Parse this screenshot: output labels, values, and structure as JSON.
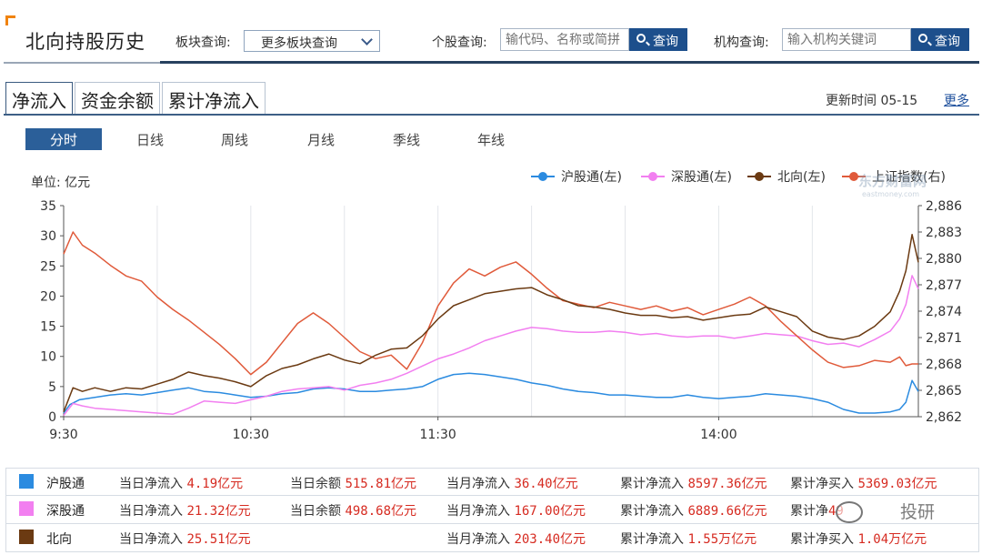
{
  "header": {
    "title": "北向持股历史",
    "sector_label": "板块查询:",
    "sector_select_value": "更多板块查询",
    "stock_label": "个股查询:",
    "stock_placeholder": "输代码、名称或简拼",
    "institution_label": "机构查询:",
    "institution_placeholder": "输入机构关键词",
    "search_button": "查询"
  },
  "main_tabs": [
    "净流入",
    "资金余额",
    "累计净流入"
  ],
  "update_label": "更新时间 05-15",
  "more_link": "更多",
  "period_tabs": [
    "分时",
    "日线",
    "周线",
    "月线",
    "季线",
    "年线"
  ],
  "watermark": {
    "top": "东方财富网",
    "top_sub": "eastmoney.com",
    "bottom": "投研"
  },
  "colors": {
    "hu": "#2b8be0",
    "shen": "#f27ff0",
    "bei": "#6b3a12",
    "sh_index": "#e05a3a",
    "accent": "#1d4f8c"
  },
  "chart_data": {
    "type": "line",
    "unit_label": "单位: 亿元",
    "legend": [
      "沪股通(左)",
      "深股通(左)",
      "北向(左)",
      "上证指数(右)"
    ],
    "legend_position": "top-right",
    "x_ticks": [
      "9:30",
      "10:30",
      "11:30",
      "14:00"
    ],
    "x_tick_index": [
      0,
      60,
      120,
      210
    ],
    "x_total_minutes": 240,
    "y_left_ticks": [
      0,
      5,
      10,
      15,
      20,
      25,
      30,
      35
    ],
    "y_left_range": [
      0,
      35
    ],
    "y_right_ticks": [
      "2,862",
      "2,865",
      "2,868",
      "2,871",
      "2,874",
      "2,877",
      "2,880",
      "2,883",
      "2,886"
    ],
    "y_right_range": [
      2862,
      2886
    ],
    "grid": "vertical",
    "series": [
      {
        "name": "沪股通(左)",
        "key": "hu",
        "points": [
          [
            0,
            0.6
          ],
          [
            2,
            2.0
          ],
          [
            5,
            2.8
          ],
          [
            10,
            3.2
          ],
          [
            15,
            3.6
          ],
          [
            20,
            3.8
          ],
          [
            25,
            3.6
          ],
          [
            30,
            4.0
          ],
          [
            35,
            4.4
          ],
          [
            40,
            4.8
          ],
          [
            45,
            4.2
          ],
          [
            50,
            4.0
          ],
          [
            55,
            3.6
          ],
          [
            60,
            3.2
          ],
          [
            65,
            3.4
          ],
          [
            70,
            3.8
          ],
          [
            75,
            4.0
          ],
          [
            80,
            4.6
          ],
          [
            85,
            4.8
          ],
          [
            90,
            4.6
          ],
          [
            95,
            4.2
          ],
          [
            100,
            4.2
          ],
          [
            105,
            4.4
          ],
          [
            110,
            4.6
          ],
          [
            115,
            5.0
          ],
          [
            120,
            6.2
          ],
          [
            125,
            7.0
          ],
          [
            130,
            7.2
          ],
          [
            135,
            7.0
          ],
          [
            140,
            6.6
          ],
          [
            145,
            6.2
          ],
          [
            150,
            5.6
          ],
          [
            155,
            5.2
          ],
          [
            160,
            4.6
          ],
          [
            165,
            4.2
          ],
          [
            170,
            4.0
          ],
          [
            175,
            3.6
          ],
          [
            180,
            3.6
          ],
          [
            185,
            3.4
          ],
          [
            190,
            3.2
          ],
          [
            195,
            3.2
          ],
          [
            200,
            3.6
          ],
          [
            205,
            3.2
          ],
          [
            210,
            3.0
          ],
          [
            215,
            3.2
          ],
          [
            220,
            3.4
          ],
          [
            225,
            3.8
          ],
          [
            230,
            3.6
          ],
          [
            235,
            3.4
          ],
          [
            240,
            3.0
          ],
          [
            245,
            2.4
          ],
          [
            250,
            1.2
          ],
          [
            255,
            0.6
          ],
          [
            260,
            0.6
          ],
          [
            265,
            0.8
          ],
          [
            268,
            1.2
          ],
          [
            270,
            2.4
          ],
          [
            272,
            6.0
          ],
          [
            274,
            4.2
          ]
        ]
      },
      {
        "name": "深股通(左)",
        "key": "shen",
        "points": [
          [
            0,
            0.2
          ],
          [
            3,
            2.2
          ],
          [
            6,
            1.8
          ],
          [
            10,
            1.4
          ],
          [
            15,
            1.2
          ],
          [
            20,
            1.0
          ],
          [
            25,
            0.8
          ],
          [
            30,
            0.6
          ],
          [
            35,
            0.4
          ],
          [
            40,
            1.4
          ],
          [
            45,
            2.6
          ],
          [
            50,
            2.4
          ],
          [
            55,
            2.2
          ],
          [
            60,
            2.8
          ],
          [
            65,
            3.4
          ],
          [
            70,
            4.2
          ],
          [
            75,
            4.6
          ],
          [
            80,
            4.8
          ],
          [
            85,
            5.0
          ],
          [
            90,
            4.4
          ],
          [
            95,
            5.2
          ],
          [
            100,
            5.6
          ],
          [
            105,
            6.2
          ],
          [
            110,
            7.2
          ],
          [
            115,
            8.4
          ],
          [
            120,
            9.6
          ],
          [
            125,
            10.4
          ],
          [
            130,
            11.4
          ],
          [
            135,
            12.6
          ],
          [
            140,
            13.4
          ],
          [
            145,
            14.2
          ],
          [
            150,
            14.8
          ],
          [
            155,
            14.6
          ],
          [
            160,
            14.2
          ],
          [
            165,
            14.0
          ],
          [
            170,
            14.0
          ],
          [
            175,
            14.2
          ],
          [
            180,
            14.0
          ],
          [
            185,
            13.6
          ],
          [
            190,
            13.8
          ],
          [
            195,
            13.4
          ],
          [
            200,
            13.2
          ],
          [
            205,
            13.4
          ],
          [
            210,
            13.4
          ],
          [
            215,
            13.0
          ],
          [
            220,
            13.4
          ],
          [
            225,
            13.8
          ],
          [
            230,
            13.6
          ],
          [
            235,
            13.4
          ],
          [
            240,
            12.6
          ],
          [
            245,
            12.0
          ],
          [
            250,
            12.2
          ],
          [
            255,
            11.6
          ],
          [
            260,
            12.8
          ],
          [
            265,
            14.2
          ],
          [
            268,
            16.2
          ],
          [
            270,
            18.6
          ],
          [
            272,
            23.4
          ],
          [
            274,
            21.2
          ]
        ]
      },
      {
        "name": "北向(左)",
        "key": "bei",
        "points": [
          [
            0,
            0.8
          ],
          [
            3,
            4.8
          ],
          [
            6,
            4.2
          ],
          [
            10,
            4.8
          ],
          [
            15,
            4.2
          ],
          [
            20,
            4.8
          ],
          [
            25,
            4.6
          ],
          [
            30,
            5.4
          ],
          [
            35,
            6.2
          ],
          [
            40,
            7.4
          ],
          [
            45,
            6.8
          ],
          [
            50,
            6.4
          ],
          [
            55,
            5.8
          ],
          [
            60,
            5.0
          ],
          [
            65,
            6.8
          ],
          [
            70,
            8.0
          ],
          [
            75,
            8.6
          ],
          [
            80,
            9.6
          ],
          [
            85,
            10.4
          ],
          [
            90,
            9.4
          ],
          [
            95,
            8.8
          ],
          [
            100,
            10.2
          ],
          [
            105,
            11.2
          ],
          [
            110,
            11.4
          ],
          [
            115,
            13.4
          ],
          [
            120,
            16.2
          ],
          [
            125,
            18.4
          ],
          [
            130,
            19.4
          ],
          [
            135,
            20.4
          ],
          [
            140,
            20.8
          ],
          [
            145,
            21.2
          ],
          [
            150,
            21.4
          ],
          [
            155,
            20.2
          ],
          [
            160,
            19.4
          ],
          [
            165,
            18.4
          ],
          [
            170,
            18.2
          ],
          [
            175,
            17.8
          ],
          [
            180,
            17.2
          ],
          [
            185,
            16.8
          ],
          [
            190,
            16.8
          ],
          [
            195,
            16.4
          ],
          [
            200,
            16.6
          ],
          [
            205,
            16.0
          ],
          [
            210,
            16.4
          ],
          [
            215,
            16.8
          ],
          [
            220,
            17.0
          ],
          [
            225,
            18.2
          ],
          [
            230,
            17.4
          ],
          [
            235,
            16.6
          ],
          [
            240,
            14.2
          ],
          [
            245,
            13.2
          ],
          [
            250,
            12.8
          ],
          [
            255,
            13.4
          ],
          [
            260,
            15.0
          ],
          [
            265,
            17.4
          ],
          [
            268,
            20.8
          ],
          [
            270,
            24.2
          ],
          [
            272,
            30.2
          ],
          [
            274,
            25.6
          ]
        ]
      },
      {
        "name": "上证指数(右)",
        "key": "sh_index",
        "axis": "right",
        "points": [
          [
            0,
            2880.5
          ],
          [
            3,
            2883.0
          ],
          [
            6,
            2881.5
          ],
          [
            10,
            2880.6
          ],
          [
            15,
            2879.2
          ],
          [
            20,
            2878.0
          ],
          [
            25,
            2877.4
          ],
          [
            30,
            2875.6
          ],
          [
            35,
            2874.2
          ],
          [
            40,
            2873.0
          ],
          [
            45,
            2871.6
          ],
          [
            50,
            2870.2
          ],
          [
            55,
            2868.6
          ],
          [
            60,
            2866.8
          ],
          [
            65,
            2868.2
          ],
          [
            70,
            2870.4
          ],
          [
            75,
            2872.6
          ],
          [
            80,
            2873.8
          ],
          [
            85,
            2872.6
          ],
          [
            90,
            2871.0
          ],
          [
            95,
            2869.4
          ],
          [
            100,
            2868.6
          ],
          [
            105,
            2869.0
          ],
          [
            110,
            2867.4
          ],
          [
            115,
            2870.4
          ],
          [
            120,
            2874.6
          ],
          [
            125,
            2877.2
          ],
          [
            130,
            2878.8
          ],
          [
            135,
            2878.0
          ],
          [
            140,
            2879.0
          ],
          [
            145,
            2879.6
          ],
          [
            150,
            2878.2
          ],
          [
            155,
            2876.6
          ],
          [
            160,
            2875.2
          ],
          [
            165,
            2874.8
          ],
          [
            170,
            2874.4
          ],
          [
            175,
            2875.0
          ],
          [
            180,
            2874.6
          ],
          [
            185,
            2874.2
          ],
          [
            190,
            2874.6
          ],
          [
            195,
            2874.0
          ],
          [
            200,
            2874.4
          ],
          [
            205,
            2873.6
          ],
          [
            210,
            2874.2
          ],
          [
            215,
            2874.8
          ],
          [
            220,
            2875.6
          ],
          [
            225,
            2874.6
          ],
          [
            230,
            2872.8
          ],
          [
            235,
            2871.2
          ],
          [
            240,
            2869.6
          ],
          [
            245,
            2868.2
          ],
          [
            250,
            2867.6
          ],
          [
            255,
            2867.8
          ],
          [
            260,
            2868.4
          ],
          [
            265,
            2868.2
          ],
          [
            268,
            2868.8
          ],
          [
            270,
            2867.8
          ],
          [
            272,
            2868.0
          ],
          [
            274,
            2868.0
          ]
        ]
      }
    ]
  },
  "summary": [
    {
      "key": "hu",
      "name": "沪股通",
      "items": [
        {
          "label": "当日净流入",
          "value": "4.19亿元"
        },
        {
          "label": "当日余额",
          "value": "515.81亿元"
        },
        {
          "label": "当月净流入",
          "value": "36.40亿元"
        },
        {
          "label": "累计净流入",
          "value": "8597.36亿元"
        },
        {
          "label": "累计净买入",
          "value": "5369.03亿元"
        }
      ]
    },
    {
      "key": "shen",
      "name": "深股通",
      "items": [
        {
          "label": "当日净流入",
          "value": "21.32亿元"
        },
        {
          "label": "当日余额",
          "value": "498.68亿元"
        },
        {
          "label": "当月净流入",
          "value": "167.00亿元"
        },
        {
          "label": "累计净流入",
          "value": "6889.66亿元"
        },
        {
          "label": "累计净",
          "value": "49"
        }
      ]
    },
    {
      "key": "bei",
      "name": "北向",
      "items": [
        {
          "label": "当日净流入",
          "value": "25.51亿元"
        },
        {
          "label": "",
          "value": ""
        },
        {
          "label": "当月净流入",
          "value": "203.40亿元"
        },
        {
          "label": "累计净流入",
          "value": "1.55万亿元"
        },
        {
          "label": "累计净买入",
          "value": "1.04万亿元"
        }
      ]
    }
  ]
}
